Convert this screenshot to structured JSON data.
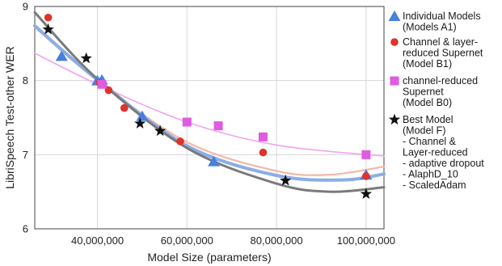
{
  "chart_data": {
    "type": "scatter",
    "title": "",
    "xlabel": "Model Size (parameters)",
    "ylabel": "LibriSpeech Test-other WER",
    "xlim": [
      26000000,
      104000000
    ],
    "ylim": [
      6,
      9
    ],
    "x_ticks": [
      40000000,
      60000000,
      80000000,
      100000000
    ],
    "x_tick_labels": [
      "40,000,000",
      "60,000,000",
      "80,000,000",
      "100,000,000"
    ],
    "y_ticks": [
      6,
      7,
      8,
      9
    ],
    "y_tick_labels": [
      "6",
      "7",
      "8",
      "9"
    ],
    "grid": true,
    "legend_position": "right",
    "series": [
      {
        "name": "Individual Models (Models A1)",
        "legend_lines": [
          "Individual Models",
          "(Models A1)"
        ],
        "marker": "triangle",
        "color": "#4a7fdc",
        "fit_color": "#8aaee6",
        "fit_width": 4,
        "x": [
          32000000,
          40000000,
          41000000,
          50000000,
          66000000,
          100000000
        ],
        "y": [
          8.33,
          8.0,
          8.01,
          7.52,
          6.91,
          6.73
        ],
        "fit_x": [
          26000000,
          40000000,
          60000000,
          80000000,
          95000000,
          104000000
        ],
        "fit_y": [
          8.74,
          8.01,
          7.12,
          6.72,
          6.66,
          6.74
        ]
      },
      {
        "name": "Channel & layer-reduced Supernet (Model B1)",
        "legend_lines": [
          "Channel & layer-",
          "reduced Supernet",
          "(Model B1)"
        ],
        "marker": "circle",
        "color": "#e0332a",
        "fit_color": "#f2b9a8",
        "fit_width": 2.2,
        "x": [
          29000000,
          40500000,
          42500000,
          46000000,
          58500000,
          77000000,
          100000000
        ],
        "y": [
          8.85,
          7.97,
          7.87,
          7.63,
          7.18,
          7.03,
          6.71
        ],
        "fit_x": [
          26000000,
          40000000,
          60000000,
          80000000,
          92000000,
          104000000
        ],
        "fit_y": [
          8.72,
          8.0,
          7.17,
          6.78,
          6.73,
          6.84
        ]
      },
      {
        "name": "channel-reduced Supernet (Model B0)",
        "legend_lines": [
          "channel-reduced",
          "Supernet",
          "(Model B0)"
        ],
        "marker": "square",
        "color": "#e05be0",
        "fit_color": "#f0a4f0",
        "fit_width": 1.6,
        "x": [
          41000000,
          60000000,
          67000000,
          77000000,
          100000000
        ],
        "y": [
          7.95,
          7.44,
          7.39,
          7.24,
          7.0
        ],
        "fit_x": [
          26000000,
          40000000,
          60000000,
          80000000,
          104000000
        ],
        "fit_y": [
          8.37,
          7.95,
          7.44,
          7.13,
          6.98
        ]
      },
      {
        "name": "Best Model (Model F)",
        "legend_lines": [
          "Best Model",
          "(Model F)",
          "- Channel &",
          "Layer-reduced",
          "- adaptive dropout",
          "- AlaphD_10",
          "- ScaledAdam"
        ],
        "marker": "star",
        "color": "#111111",
        "fit_color": "#7a7a7a",
        "fit_width": 3,
        "x": [
          29000000,
          37500000,
          49500000,
          54000000,
          82000000,
          100000000
        ],
        "y": [
          8.69,
          8.3,
          7.42,
          7.32,
          6.65,
          6.47
        ],
        "fit_x": [
          26000000,
          40000000,
          60000000,
          80000000,
          92000000,
          104000000
        ],
        "fit_y": [
          8.92,
          8.02,
          7.09,
          6.61,
          6.5,
          6.56
        ]
      }
    ]
  }
}
